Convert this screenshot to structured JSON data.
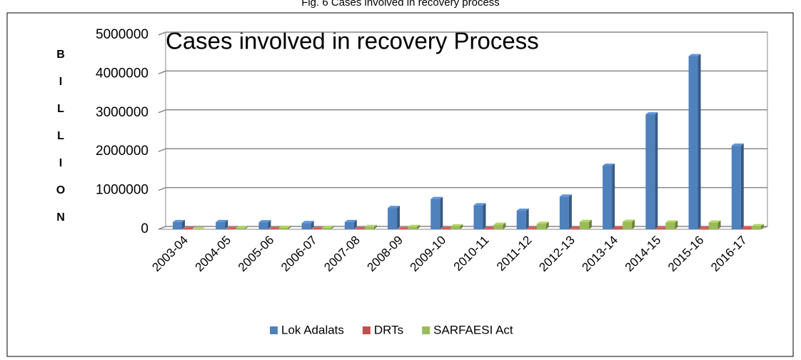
{
  "chart_data": {
    "type": "bar3d",
    "caption": "Fig. 6 Cases involved in recovery process",
    "title": "Cases involved in recovery Process",
    "y_label": "BILLION",
    "categories": [
      "2003-04",
      "2004-05",
      "2005-06",
      "2006-07",
      "2007-08",
      "2008-09",
      "2009-10",
      "2010-11",
      "2011-12",
      "2012-13",
      "2013-14",
      "2014-15",
      "2015-16",
      "2016-17"
    ],
    "series": [
      {
        "name": "Lok Adalats",
        "color": "#4f81bd",
        "values": [
          186000,
          186000,
          181000,
          160000,
          186000,
          549000,
          778000,
          617000,
          477000,
          840000,
          1636000,
          2958000,
          4456000,
          2152000
        ]
      },
      {
        "name": "DRTs",
        "color": "#c0504d",
        "values": [
          7000,
          4000,
          3500,
          4000,
          4000,
          2000,
          6000,
          12000,
          13000,
          13000,
          28000,
          22000,
          24000,
          28000
        ]
      },
      {
        "name": "SARFAESI Act",
        "color": "#9bbb59",
        "values": [
          0,
          30000,
          40000,
          40000,
          60000,
          60000,
          78000,
          118000,
          140000,
          190000,
          194000,
          175000,
          173000,
          80000
        ]
      }
    ],
    "ylim": [
      0,
      5000000
    ],
    "yticks": [
      0,
      1000000,
      2000000,
      3000000,
      4000000,
      5000000
    ],
    "grid": true
  }
}
